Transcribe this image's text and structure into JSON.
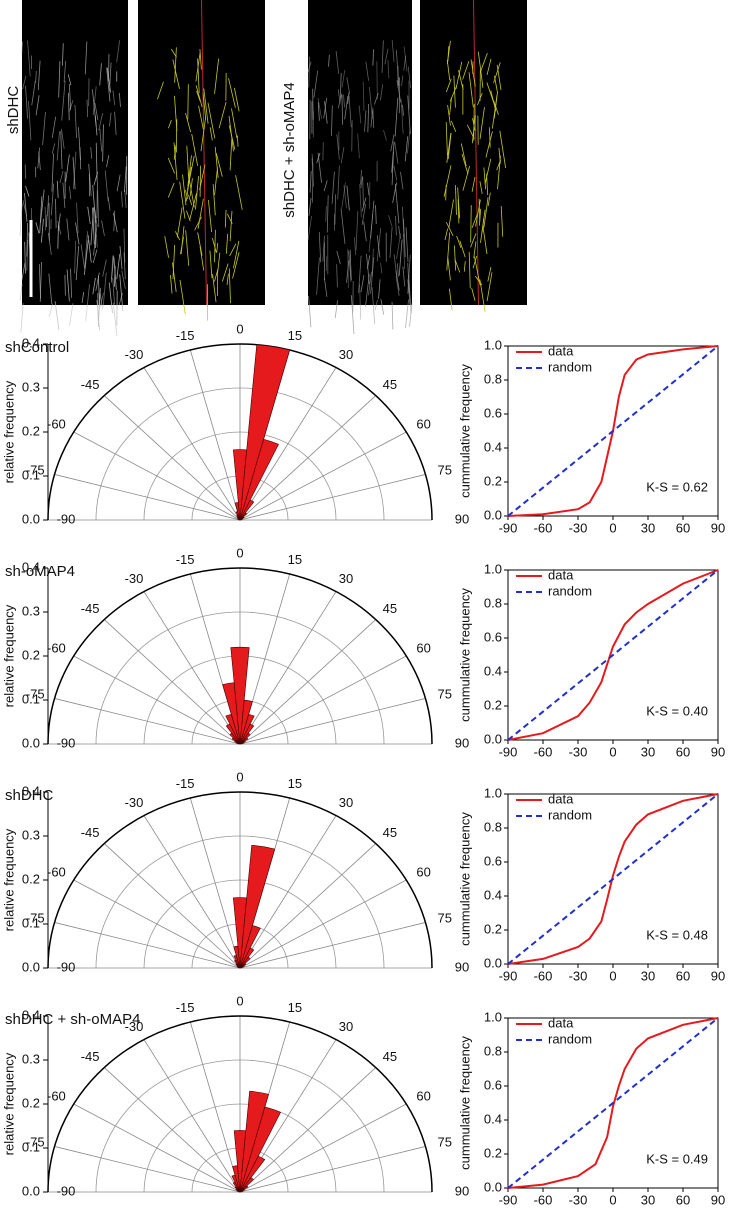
{
  "images": [
    {
      "label": "shDHC"
    },
    {
      "label": "shDHC + sh-oMAP4"
    }
  ],
  "chart_data": [
    {
      "type": "polar-histogram",
      "title": "shControl",
      "ylabel": "relative frequency",
      "color": "#e41a1c",
      "bins": [
        -85,
        -75,
        -65,
        -55,
        -45,
        -35,
        -25,
        -15,
        -5,
        5,
        15,
        25,
        35,
        45,
        55,
        65,
        75,
        85
      ],
      "values": [
        0.003,
        0.004,
        0.005,
        0.006,
        0.008,
        0.012,
        0.02,
        0.04,
        0.16,
        0.4,
        0.19,
        0.05,
        0.02,
        0.01,
        0.006,
        0.004,
        0.003
      ],
      "ylim": [
        0,
        0.4
      ],
      "yticks": [
        {
          "value": 0,
          "label": "0.0"
        },
        0.1,
        0.2,
        0.3,
        0.4
      ],
      "xlim": [
        -90,
        90
      ],
      "xticks": [
        -90,
        -75,
        -60,
        -45,
        -30,
        -15,
        0,
        15,
        30,
        45,
        60,
        75,
        90
      ]
    },
    {
      "type": "cumulative",
      "ylabel": "cummulative frequency",
      "annotation": "K-S = 0.62",
      "legend": "upper left",
      "series": [
        {
          "name": "data",
          "color": "#e41a1c",
          "dash": false,
          "x": [
            -90,
            -60,
            -30,
            -20,
            -10,
            -5,
            0,
            5,
            10,
            20,
            30,
            60,
            90
          ],
          "values": [
            0,
            0.01,
            0.04,
            0.08,
            0.2,
            0.35,
            0.5,
            0.7,
            0.83,
            0.92,
            0.95,
            0.98,
            1
          ]
        },
        {
          "name": "random",
          "color": "#1f2fd0",
          "dash": true,
          "x": [
            -90,
            90
          ],
          "values": [
            0,
            1
          ]
        }
      ],
      "xlim": [
        -90,
        90
      ],
      "xticks": [
        -90,
        -60,
        -30,
        0,
        30,
        60,
        90
      ],
      "ylim": [
        0,
        1
      ],
      "yticks": [
        {
          "value": 0,
          "label": "0.0"
        },
        0.2,
        0.4,
        0.6,
        0.8,
        {
          "value": 1,
          "label": "1.0"
        }
      ]
    },
    {
      "type": "polar-histogram",
      "title": "sh-oMAP4",
      "ylabel": "relative frequency",
      "color": "#e41a1c",
      "bins": [
        -85,
        -75,
        -65,
        -55,
        -45,
        -35,
        -25,
        -15,
        -5,
        5,
        15,
        25,
        35,
        45,
        55,
        65,
        75,
        85
      ],
      "values": [
        0.005,
        0.008,
        0.012,
        0.02,
        0.03,
        0.05,
        0.07,
        0.14,
        0.22,
        0.1,
        0.07,
        0.05,
        0.03,
        0.02,
        0.012,
        0.008,
        0.005
      ],
      "ylim": [
        0,
        0.4
      ],
      "yticks": [
        {
          "value": 0,
          "label": "0.0"
        },
        0.1,
        0.2,
        0.3,
        0.4
      ],
      "xlim": [
        -90,
        90
      ],
      "xticks": [
        -90,
        -75,
        -60,
        -45,
        -30,
        -15,
        0,
        15,
        30,
        45,
        60,
        75,
        90
      ]
    },
    {
      "type": "cumulative",
      "ylabel": "cummulative frequency",
      "annotation": "K-S = 0.40",
      "legend": "upper left",
      "series": [
        {
          "name": "data",
          "color": "#e41a1c",
          "dash": false,
          "x": [
            -90,
            -60,
            -30,
            -20,
            -10,
            0,
            10,
            20,
            30,
            60,
            90
          ],
          "values": [
            0,
            0.04,
            0.14,
            0.22,
            0.34,
            0.55,
            0.68,
            0.75,
            0.8,
            0.92,
            1
          ]
        },
        {
          "name": "random",
          "color": "#1f2fd0",
          "dash": true,
          "x": [
            -90,
            90
          ],
          "values": [
            0,
            1
          ]
        }
      ],
      "xlim": [
        -90,
        90
      ],
      "xticks": [
        -90,
        -60,
        -30,
        0,
        30,
        60,
        90
      ],
      "ylim": [
        0,
        1
      ],
      "yticks": [
        {
          "value": 0,
          "label": "0.0"
        },
        0.2,
        0.4,
        0.6,
        0.8,
        {
          "value": 1,
          "label": "1.0"
        }
      ]
    },
    {
      "type": "polar-histogram",
      "title": "shDHC",
      "ylabel": "relative frequency",
      "color": "#e41a1c",
      "bins": [
        -85,
        -75,
        -65,
        -55,
        -45,
        -35,
        -25,
        -15,
        -5,
        5,
        15,
        25,
        35,
        45,
        55,
        65,
        75,
        85
      ],
      "values": [
        0.003,
        0.004,
        0.006,
        0.008,
        0.012,
        0.02,
        0.03,
        0.05,
        0.16,
        0.28,
        0.1,
        0.05,
        0.03,
        0.015,
        0.01,
        0.006,
        0.004
      ],
      "ylim": [
        0,
        0.4
      ],
      "yticks": [
        {
          "value": 0,
          "label": "0.0"
        },
        0.1,
        0.2,
        0.3,
        0.4
      ],
      "xlim": [
        -90,
        90
      ],
      "xticks": [
        -90,
        -75,
        -60,
        -45,
        -30,
        -15,
        0,
        15,
        30,
        45,
        60,
        75,
        90
      ]
    },
    {
      "type": "cumulative",
      "ylabel": "cummulative frequency",
      "annotation": "K-S = 0.48",
      "legend": "upper left",
      "series": [
        {
          "name": "data",
          "color": "#e41a1c",
          "dash": false,
          "x": [
            -90,
            -60,
            -30,
            -20,
            -10,
            -5,
            0,
            5,
            10,
            20,
            30,
            60,
            90
          ],
          "values": [
            0,
            0.03,
            0.1,
            0.15,
            0.25,
            0.38,
            0.52,
            0.63,
            0.72,
            0.82,
            0.88,
            0.96,
            1
          ]
        },
        {
          "name": "random",
          "color": "#1f2fd0",
          "dash": true,
          "x": [
            -90,
            90
          ],
          "values": [
            0,
            1
          ]
        }
      ],
      "xlim": [
        -90,
        90
      ],
      "xticks": [
        -90,
        -60,
        -30,
        0,
        30,
        60,
        90
      ],
      "ylim": [
        0,
        1
      ],
      "yticks": [
        {
          "value": 0,
          "label": "0.0"
        },
        0.2,
        0.4,
        0.6,
        0.8,
        {
          "value": 1,
          "label": "1.0"
        }
      ]
    },
    {
      "type": "polar-histogram",
      "title": "shDHC + sh-oMAP4",
      "ylabel": "relative frequency",
      "color": "#e41a1c",
      "bins": [
        -85,
        -75,
        -65,
        -55,
        -45,
        -35,
        -25,
        -15,
        -5,
        5,
        15,
        25,
        35,
        45,
        55,
        65,
        75,
        85
      ],
      "values": [
        0.003,
        0.005,
        0.007,
        0.01,
        0.015,
        0.025,
        0.04,
        0.06,
        0.14,
        0.23,
        0.2,
        0.09,
        0.04,
        0.02,
        0.01,
        0.006,
        0.004
      ],
      "ylim": [
        0,
        0.4
      ],
      "yticks": [
        {
          "value": 0,
          "label": "0.0"
        },
        0.1,
        0.2,
        0.3,
        0.4
      ],
      "xlim": [
        -90,
        90
      ],
      "xticks": [
        -90,
        -75,
        -60,
        -45,
        -30,
        -15,
        0,
        15,
        30,
        45,
        60,
        75,
        90
      ]
    },
    {
      "type": "cumulative",
      "ylabel": "cummulative frequency",
      "annotation": "K-S = 0.49",
      "legend": "upper left",
      "series": [
        {
          "name": "data",
          "color": "#e41a1c",
          "dash": false,
          "x": [
            -90,
            -60,
            -30,
            -15,
            -5,
            0,
            5,
            10,
            20,
            30,
            60,
            90
          ],
          "values": [
            0,
            0.02,
            0.07,
            0.14,
            0.3,
            0.48,
            0.6,
            0.7,
            0.82,
            0.88,
            0.96,
            1
          ]
        },
        {
          "name": "random",
          "color": "#1f2fd0",
          "dash": true,
          "x": [
            -90,
            90
          ],
          "values": [
            0,
            1
          ]
        }
      ],
      "xlim": [
        -90,
        90
      ],
      "xticks": [
        -90,
        -60,
        -30,
        0,
        30,
        60,
        90
      ],
      "ylim": [
        0,
        1
      ],
      "yticks": [
        {
          "value": 0,
          "label": "0.0"
        },
        0.2,
        0.4,
        0.6,
        0.8,
        {
          "value": 1,
          "label": "1.0"
        }
      ]
    }
  ]
}
